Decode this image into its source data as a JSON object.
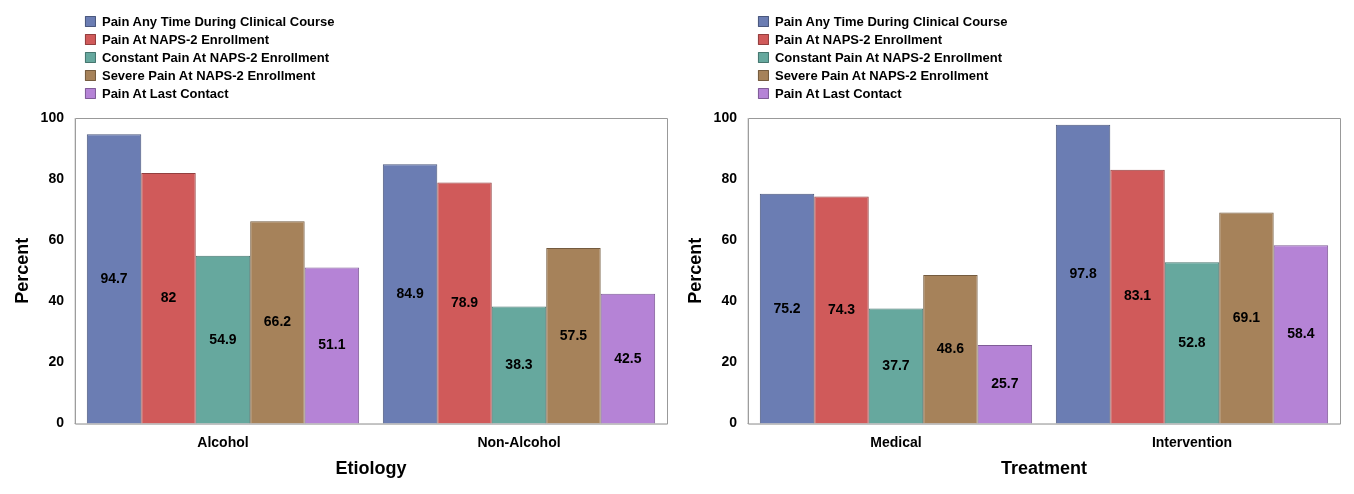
{
  "chart_data": [
    {
      "type": "bar",
      "xlabel": "Etiology",
      "ylabel": "Percent",
      "categories": [
        "Alcohol",
        "Non-Alcohol"
      ],
      "series": [
        {
          "name": "Pain Any Time During Clinical Course",
          "color": "#6b7db3",
          "values": [
            94.7,
            84.9
          ]
        },
        {
          "name": "Pain At NAPS-2 Enrollment",
          "color": "#d05a5a",
          "values": [
            82,
            78.9
          ]
        },
        {
          "name": "Constant Pain At NAPS-2 Enrollment",
          "color": "#66a89e",
          "values": [
            54.9,
            38.3
          ]
        },
        {
          "name": "Severe Pain At NAPS-2 Enrollment",
          "color": "#a6825a",
          "values": [
            66.2,
            57.5
          ]
        },
        {
          "name": "Pain At Last Contact",
          "color": "#b583d6",
          "values": [
            51.1,
            42.5
          ]
        }
      ],
      "ylim": [
        0,
        100
      ],
      "yticks": [
        0,
        20,
        40,
        60,
        80,
        100
      ],
      "grid": false,
      "legend": "top left",
      "data_labels": true
    },
    {
      "type": "bar",
      "xlabel": "Treatment",
      "ylabel": "Percent",
      "categories": [
        "Medical",
        "Intervention"
      ],
      "series": [
        {
          "name": "Pain Any Time During Clinical Course",
          "color": "#6b7db3",
          "values": [
            75.2,
            97.8
          ]
        },
        {
          "name": "Pain At NAPS-2 Enrollment",
          "color": "#d05a5a",
          "values": [
            74.3,
            83.1
          ]
        },
        {
          "name": "Constant Pain At NAPS-2 Enrollment",
          "color": "#66a89e",
          "values": [
            37.7,
            52.8
          ]
        },
        {
          "name": "Severe Pain At NAPS-2 Enrollment",
          "color": "#a6825a",
          "values": [
            48.6,
            69.1
          ]
        },
        {
          "name": "Pain At Last Contact",
          "color": "#b583d6",
          "values": [
            25.7,
            58.4
          ]
        }
      ],
      "ylim": [
        0,
        100
      ],
      "yticks": [
        0,
        20,
        40,
        60,
        80,
        100
      ],
      "grid": false,
      "legend": "top left",
      "data_labels": true
    }
  ]
}
